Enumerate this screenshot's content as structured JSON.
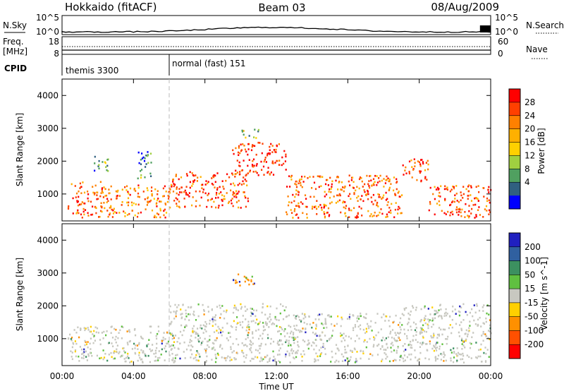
{
  "header": {
    "station": "Hokkaido (fitACF)",
    "beam": "Beam 03",
    "date": "08/Aug/2009"
  },
  "summary": {
    "nsky_label": "N.Sky",
    "nsearch_label": "N.Search",
    "freq_label": "Freq.",
    "freq_unit": "[MHz]",
    "nave_label": "Nave",
    "cpid_label": "CPID",
    "left_scale": [
      "10^5",
      "10^0"
    ],
    "right_scale": [
      "10^5",
      "10^0"
    ],
    "freq_ticks": [
      "18",
      "8"
    ],
    "nave_ticks": [
      "60",
      "0"
    ]
  },
  "cpid": {
    "segments": [
      {
        "label": "themis 3300",
        "start": "00:00",
        "end": "06:00"
      },
      {
        "label": "normal (fast) 151",
        "start": "06:00",
        "end": "24:00"
      }
    ]
  },
  "axes": {
    "x_label": "Time UT",
    "x_ticks": [
      "00:00",
      "04:00",
      "08:00",
      "12:00",
      "16:00",
      "20:00",
      "00:00"
    ],
    "y_label": "Slant Range [km]",
    "y_ticks": [
      "1000",
      "2000",
      "3000",
      "4000"
    ]
  },
  "colorbars": {
    "power": {
      "label": "Power [dB]",
      "ticks": [
        "28",
        "24",
        "20",
        "16",
        "12",
        "8",
        "4"
      ],
      "colors": [
        "#ff0000",
        "#ff4000",
        "#ff8000",
        "#ffb000",
        "#ffd000",
        "#a0d040",
        "#50a060",
        "#306080",
        "#0000ff"
      ]
    },
    "velocity": {
      "label": "Velocity [m s^-1]",
      "ticks": [
        "200",
        "100",
        "50",
        "15",
        "-15",
        "-50",
        "-100",
        "-200"
      ],
      "colors": [
        "#2020c0",
        "#3060a0",
        "#3c9060",
        "#60c040",
        "#c8c8c0",
        "#ffd000",
        "#ff9000",
        "#ff5000",
        "#ff0000"
      ]
    }
  },
  "chart_data": [
    {
      "type": "heatmap",
      "name": "power",
      "x_range_hours": [
        0,
        24
      ],
      "ylim": [
        180,
        4500
      ],
      "scatter_bands": [
        {
          "t0": 0.3,
          "t1": 2.6,
          "r0": 300,
          "r1": 1400,
          "value": 24
        },
        {
          "t0": 2.6,
          "t1": 6.0,
          "r0": 300,
          "r1": 1300,
          "value": 22
        },
        {
          "t0": 1.7,
          "t1": 2.6,
          "r0": 1700,
          "r1": 2200,
          "value": 8
        },
        {
          "t0": 4.2,
          "t1": 5.0,
          "r0": 1500,
          "r1": 2400,
          "value": 8
        },
        {
          "t0": 6.0,
          "t1": 10.5,
          "r0": 600,
          "r1": 1700,
          "value": 26
        },
        {
          "t0": 9.5,
          "t1": 12.5,
          "r0": 1600,
          "r1": 2600,
          "value": 28
        },
        {
          "t0": 10.0,
          "t1": 11.0,
          "r0": 2700,
          "r1": 3000,
          "value": 12
        },
        {
          "t0": 12.5,
          "t1": 19.0,
          "r0": 300,
          "r1": 1600,
          "value": 24
        },
        {
          "t0": 19.0,
          "t1": 20.5,
          "r0": 1400,
          "r1": 2100,
          "value": 26
        },
        {
          "t0": 20.5,
          "t1": 24.0,
          "r0": 300,
          "r1": 1300,
          "value": 26
        }
      ]
    },
    {
      "type": "heatmap",
      "name": "velocity",
      "x_range_hours": [
        0,
        24
      ],
      "ylim": [
        180,
        4500
      ],
      "scatter_bands": [
        {
          "t0": 0.3,
          "t1": 6.0,
          "r0": 300,
          "r1": 1400,
          "value": 0
        },
        {
          "t0": 6.0,
          "t1": 12.5,
          "r0": 300,
          "r1": 2100,
          "value": 0
        },
        {
          "t0": 9.5,
          "t1": 11.0,
          "r0": 2600,
          "r1": 3000,
          "value": -50
        },
        {
          "t0": 12.5,
          "t1": 19.0,
          "r0": 300,
          "r1": 1800,
          "value": 0
        },
        {
          "t0": 19.0,
          "t1": 24.0,
          "r0": 300,
          "r1": 2100,
          "value": 0
        }
      ]
    }
  ]
}
